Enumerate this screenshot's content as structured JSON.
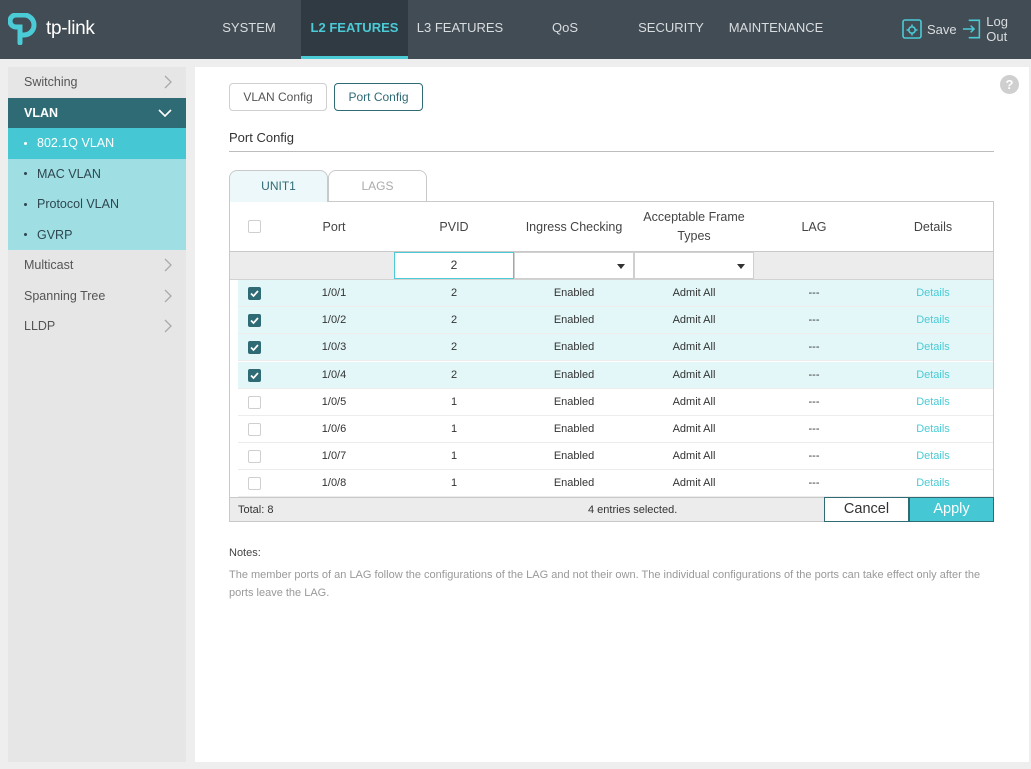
{
  "brand": {
    "name": "tp-link",
    "accent": "#4acbd6",
    "dark": "#2f6b75"
  },
  "nav": {
    "items": [
      "SYSTEM",
      "L2 FEATURES",
      "L3 FEATURES",
      "QoS",
      "SECURITY",
      "MAINTENANCE"
    ],
    "active": "L2 FEATURES",
    "save_label": "Save",
    "logout_label": "Log Out"
  },
  "sidebar": {
    "items": [
      {
        "label": "Switching"
      },
      {
        "label": "VLAN",
        "expanded": true
      },
      {
        "label": "Multicast"
      },
      {
        "label": "Spanning Tree"
      },
      {
        "label": "LLDP"
      }
    ],
    "vlan_sub": [
      "802.1Q VLAN",
      "MAC VLAN",
      "Protocol VLAN",
      "GVRP"
    ],
    "active_sub": "802.1Q VLAN"
  },
  "main": {
    "pills": [
      "VLAN Config",
      "Port Config"
    ],
    "active_pill": "Port Config",
    "section_title": "Port Config",
    "tabs": [
      "UNIT1",
      "LAGS"
    ],
    "active_tab": "UNIT1",
    "help_glyph": "?"
  },
  "table": {
    "headers": [
      "Port",
      "PVID",
      "Ingress Checking",
      "Acceptable Frame Types",
      "LAG",
      "Details"
    ],
    "filter_pvid": "2",
    "rows": [
      {
        "checked": true,
        "port": "1/0/1",
        "pvid": "2",
        "ingress": "Enabled",
        "frame": "Admit All",
        "lag": "---",
        "details": "Details"
      },
      {
        "checked": true,
        "port": "1/0/2",
        "pvid": "2",
        "ingress": "Enabled",
        "frame": "Admit All",
        "lag": "---",
        "details": "Details"
      },
      {
        "checked": true,
        "port": "1/0/3",
        "pvid": "2",
        "ingress": "Enabled",
        "frame": "Admit All",
        "lag": "---",
        "details": "Details"
      },
      {
        "checked": true,
        "port": "1/0/4",
        "pvid": "2",
        "ingress": "Enabled",
        "frame": "Admit All",
        "lag": "---",
        "details": "Details"
      },
      {
        "checked": false,
        "port": "1/0/5",
        "pvid": "1",
        "ingress": "Enabled",
        "frame": "Admit All",
        "lag": "---",
        "details": "Details"
      },
      {
        "checked": false,
        "port": "1/0/6",
        "pvid": "1",
        "ingress": "Enabled",
        "frame": "Admit All",
        "lag": "---",
        "details": "Details"
      },
      {
        "checked": false,
        "port": "1/0/7",
        "pvid": "1",
        "ingress": "Enabled",
        "frame": "Admit All",
        "lag": "---",
        "details": "Details"
      },
      {
        "checked": false,
        "port": "1/0/8",
        "pvid": "1",
        "ingress": "Enabled",
        "frame": "Admit All",
        "lag": "---",
        "details": "Details"
      }
    ],
    "total": "Total: 8",
    "selected_info": "4 entries selected.",
    "cancel_label": "Cancel",
    "apply_label": "Apply"
  },
  "notes": {
    "title": "Notes:",
    "text": "The member ports of an LAG follow the configurations of the LAG and not their own. The individual configurations of the ports can take effect only after the ports leave the LAG."
  }
}
